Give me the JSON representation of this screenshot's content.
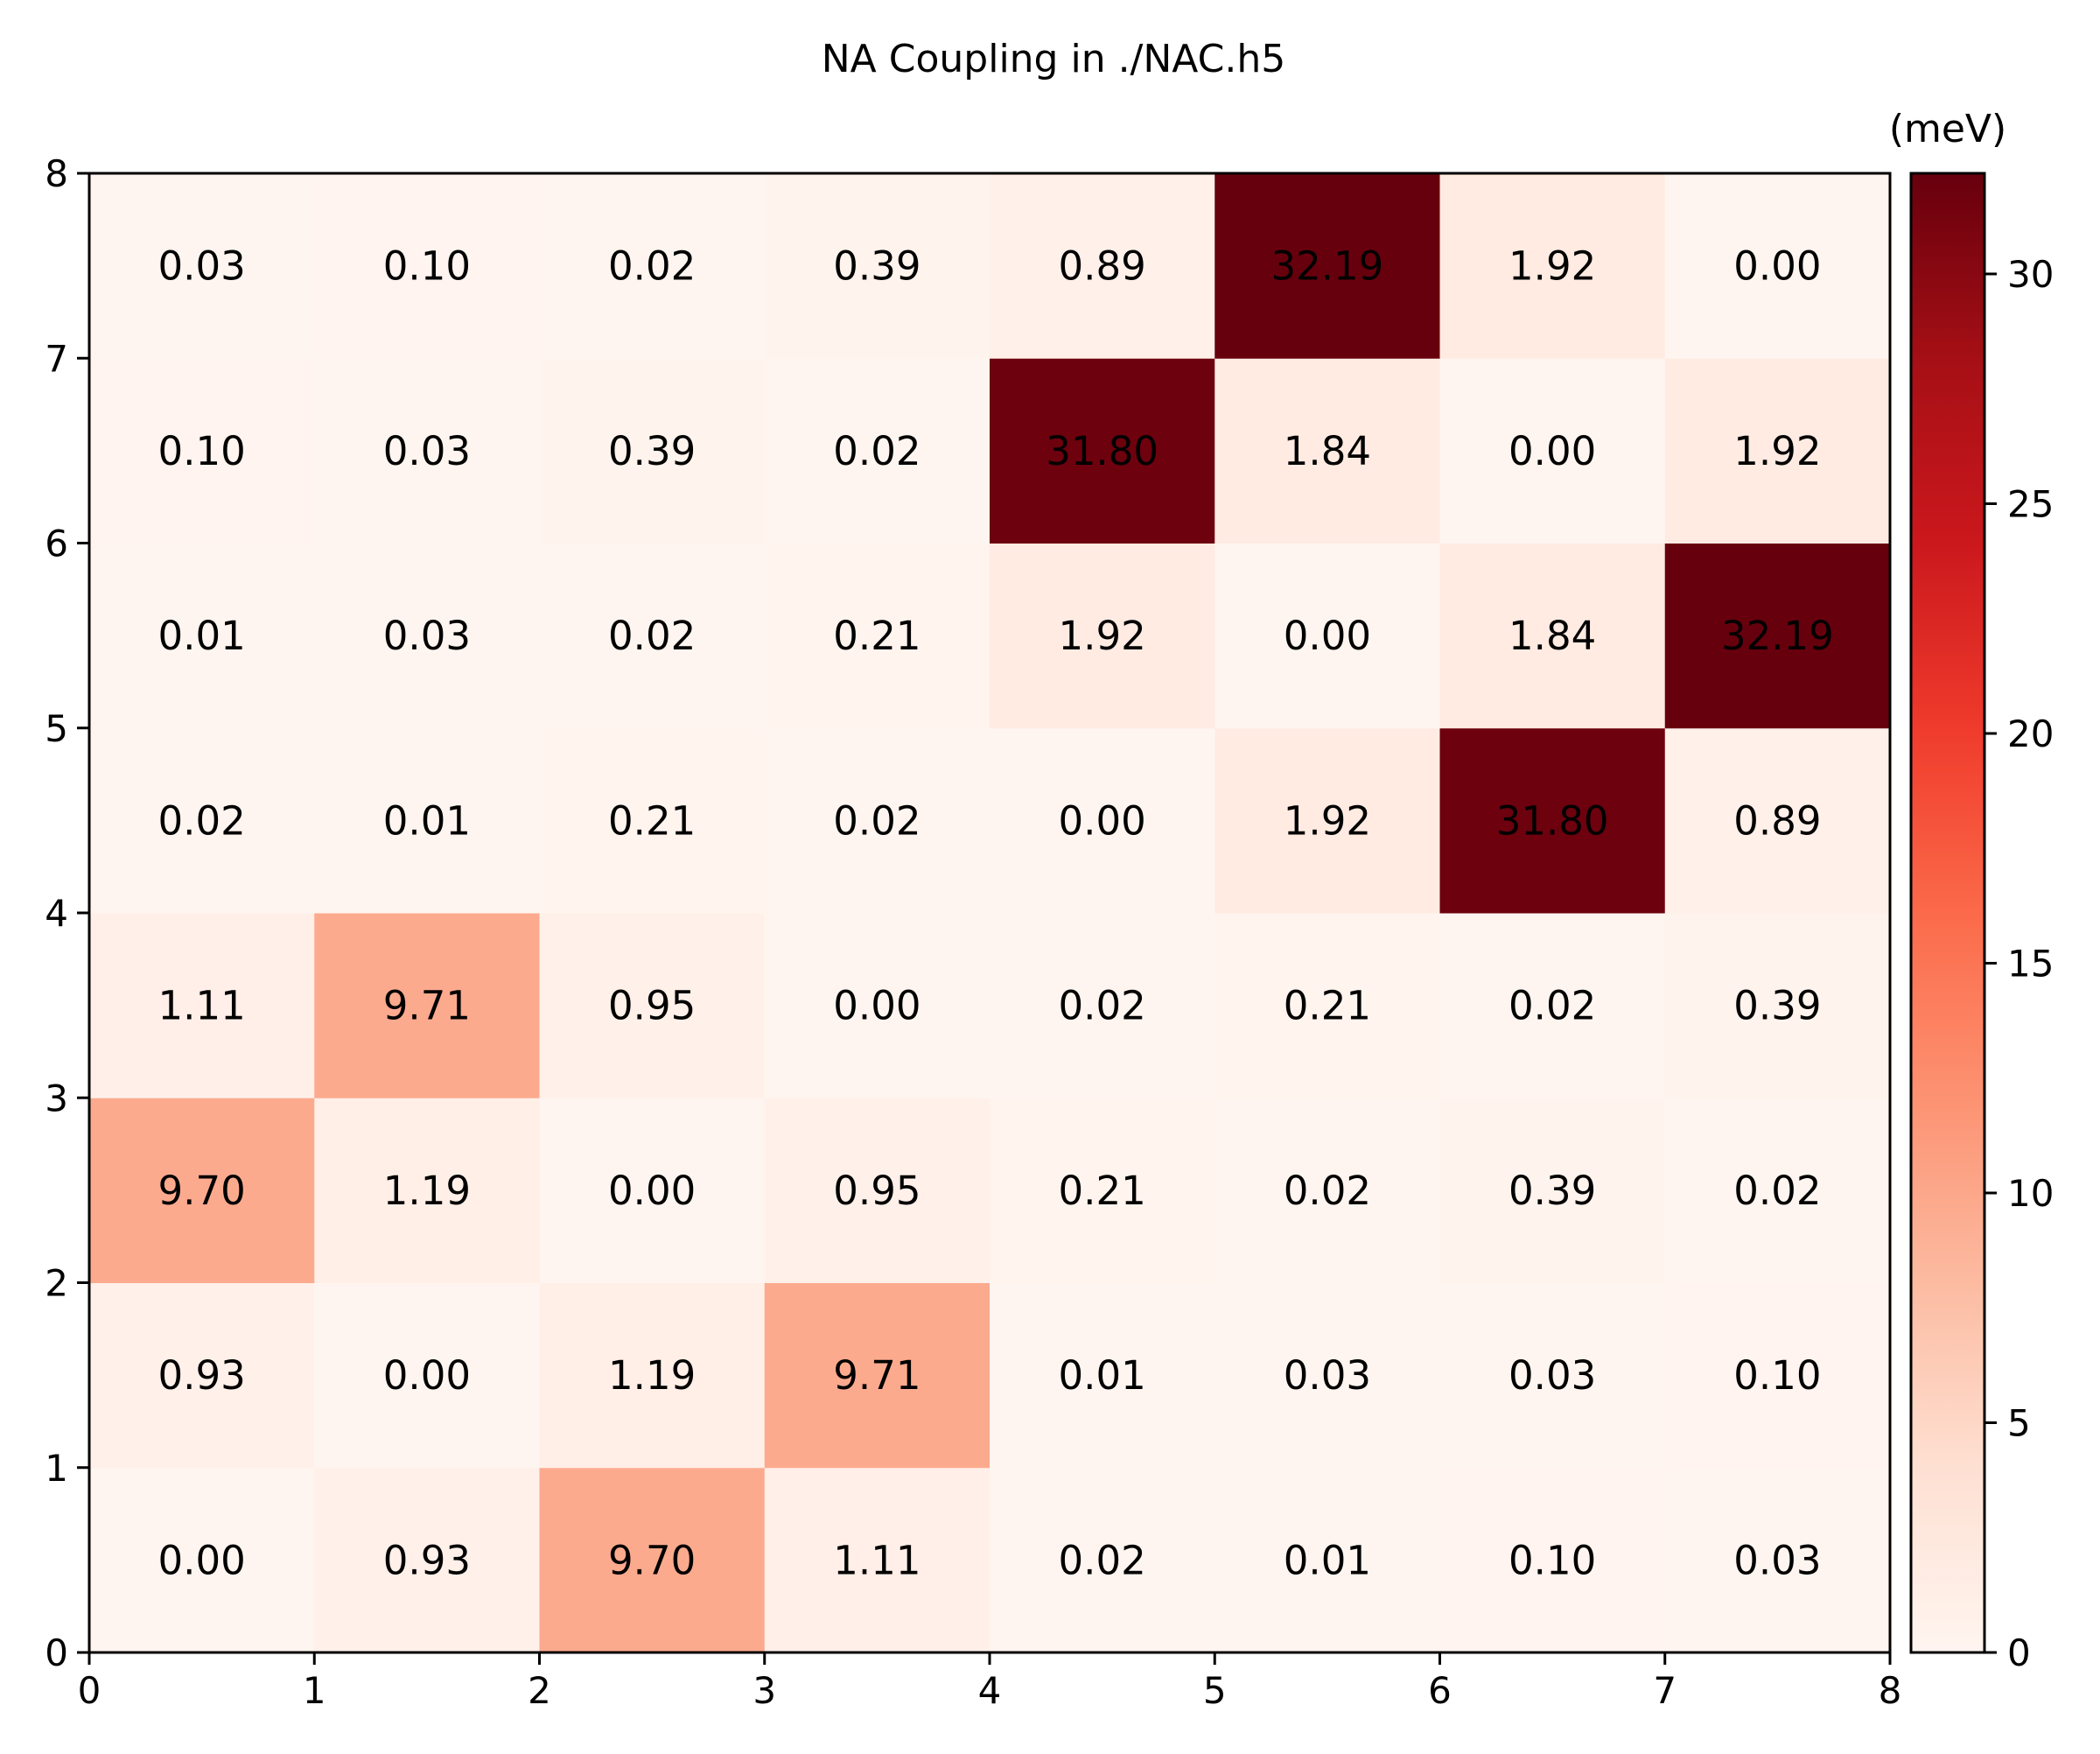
{
  "chart_data": {
    "type": "heatmap",
    "title": "NA Coupling in ./NAC.h5",
    "xlabel": "",
    "ylabel": "",
    "xlim": [
      0,
      8
    ],
    "ylim": [
      0,
      8
    ],
    "x_ticks": [
      "0",
      "1",
      "2",
      "3",
      "4",
      "5",
      "6",
      "7",
      "8"
    ],
    "y_ticks": [
      "0",
      "1",
      "2",
      "3",
      "4",
      "5",
      "6",
      "7",
      "8"
    ],
    "colorscale": "Reds",
    "colorbar": {
      "unit_label": "(meV)",
      "range": [
        0,
        32.19
      ],
      "ticks": [
        "0",
        "5",
        "10",
        "15",
        "20",
        "25",
        "30"
      ]
    },
    "row_order": "bottom-to-top",
    "matrix": [
      [
        "0.00",
        "0.93",
        "9.70",
        "1.11",
        "0.02",
        "0.01",
        "0.10",
        "0.03"
      ],
      [
        "0.93",
        "0.00",
        "1.19",
        "9.71",
        "0.01",
        "0.03",
        "0.03",
        "0.10"
      ],
      [
        "9.70",
        "1.19",
        "0.00",
        "0.95",
        "0.21",
        "0.02",
        "0.39",
        "0.02"
      ],
      [
        "1.11",
        "9.71",
        "0.95",
        "0.00",
        "0.02",
        "0.21",
        "0.02",
        "0.39"
      ],
      [
        "0.02",
        "0.01",
        "0.21",
        "0.02",
        "0.00",
        "1.92",
        "31.80",
        "0.89"
      ],
      [
        "0.01",
        "0.03",
        "0.02",
        "0.21",
        "1.92",
        "0.00",
        "1.84",
        "32.19"
      ],
      [
        "0.10",
        "0.03",
        "0.39",
        "0.02",
        "31.80",
        "1.84",
        "0.00",
        "1.92"
      ],
      [
        "0.03",
        "0.10",
        "0.02",
        "0.39",
        "0.89",
        "32.19",
        "1.92",
        "0.00"
      ]
    ]
  }
}
